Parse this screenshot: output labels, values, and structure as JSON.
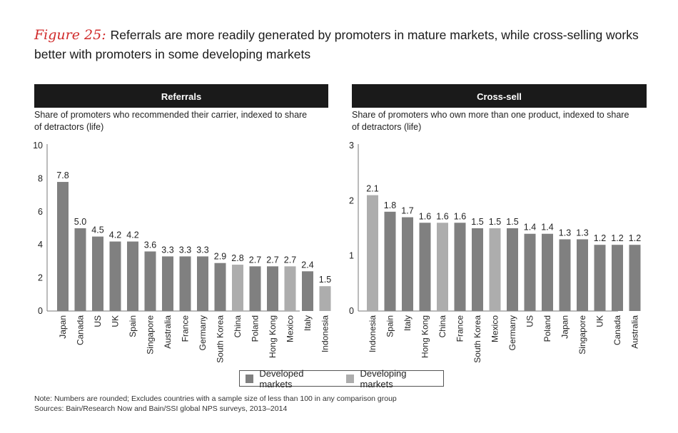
{
  "title": {
    "label": "Figure 25:",
    "text": "Referrals are more readily generated by promoters in mature markets, while cross-selling works better with promoters in some developing markets"
  },
  "colors": {
    "developed": "#808080",
    "developing": "#adadad",
    "header": "#1a1a1a"
  },
  "legend": {
    "developed": "Developed markets",
    "developing": "Developing markets"
  },
  "notes": {
    "note": "Note: Numbers are rounded; Excludes countries with a sample size of less than 100 in any comparison group",
    "sources": "Sources: Bain/Research Now and Bain/SSI global NPS surveys, 2013–2014"
  },
  "chart_data": [
    {
      "type": "bar",
      "title": "Referrals",
      "subtitle": "Share of promoters who recommended their carrier, indexed to share of detractors (life)",
      "ylim": [
        0,
        10
      ],
      "yticks": [
        0,
        2,
        4,
        6,
        8,
        10
      ],
      "categories": [
        "Japan",
        "Canada",
        "US",
        "UK",
        "Spain",
        "Singapore",
        "Australia",
        "France",
        "Germany",
        "South Korea",
        "China",
        "Poland",
        "Hong Kong",
        "Mexico",
        "Italy",
        "Indonesia"
      ],
      "values": [
        7.8,
        5.0,
        4.5,
        4.2,
        4.2,
        3.6,
        3.3,
        3.3,
        3.3,
        2.9,
        2.8,
        2.7,
        2.7,
        2.7,
        2.4,
        1.5
      ],
      "labels": [
        "7.8",
        "5.0",
        "4.5",
        "4.2",
        "4.2",
        "3.6",
        "3.3",
        "3.3",
        "3.3",
        "2.9",
        "2.8",
        "2.7",
        "2.7",
        "2.7",
        "2.4",
        "1.5"
      ],
      "groups": [
        "developed",
        "developed",
        "developed",
        "developed",
        "developed",
        "developed",
        "developed",
        "developed",
        "developed",
        "developed",
        "developing",
        "developed",
        "developed",
        "developing",
        "developed",
        "developing"
      ]
    },
    {
      "type": "bar",
      "title": "Cross-sell",
      "subtitle": "Share of promoters who own more than one product, indexed to share of detractors (life)",
      "ylim": [
        0,
        3
      ],
      "yticks": [
        0,
        1,
        2,
        3
      ],
      "categories": [
        "Indonesia",
        "Spain",
        "Italy",
        "Hong Kong",
        "China",
        "France",
        "South Korea",
        "Mexico",
        "Germany",
        "US",
        "Poland",
        "Japan",
        "Singapore",
        "UK",
        "Canada",
        "Australia"
      ],
      "values": [
        2.1,
        1.8,
        1.7,
        1.6,
        1.6,
        1.6,
        1.5,
        1.5,
        1.5,
        1.4,
        1.4,
        1.3,
        1.3,
        1.2,
        1.2,
        1.2
      ],
      "labels": [
        "2.1",
        "1.8",
        "1.7",
        "1.6",
        "1.6",
        "1.6",
        "1.5",
        "1.5",
        "1.5",
        "1.4",
        "1.4",
        "1.3",
        "1.3",
        "1.2",
        "1.2",
        "1.2"
      ],
      "groups": [
        "developing",
        "developed",
        "developed",
        "developed",
        "developing",
        "developed",
        "developed",
        "developing",
        "developed",
        "developed",
        "developed",
        "developed",
        "developed",
        "developed",
        "developed",
        "developed"
      ]
    }
  ]
}
